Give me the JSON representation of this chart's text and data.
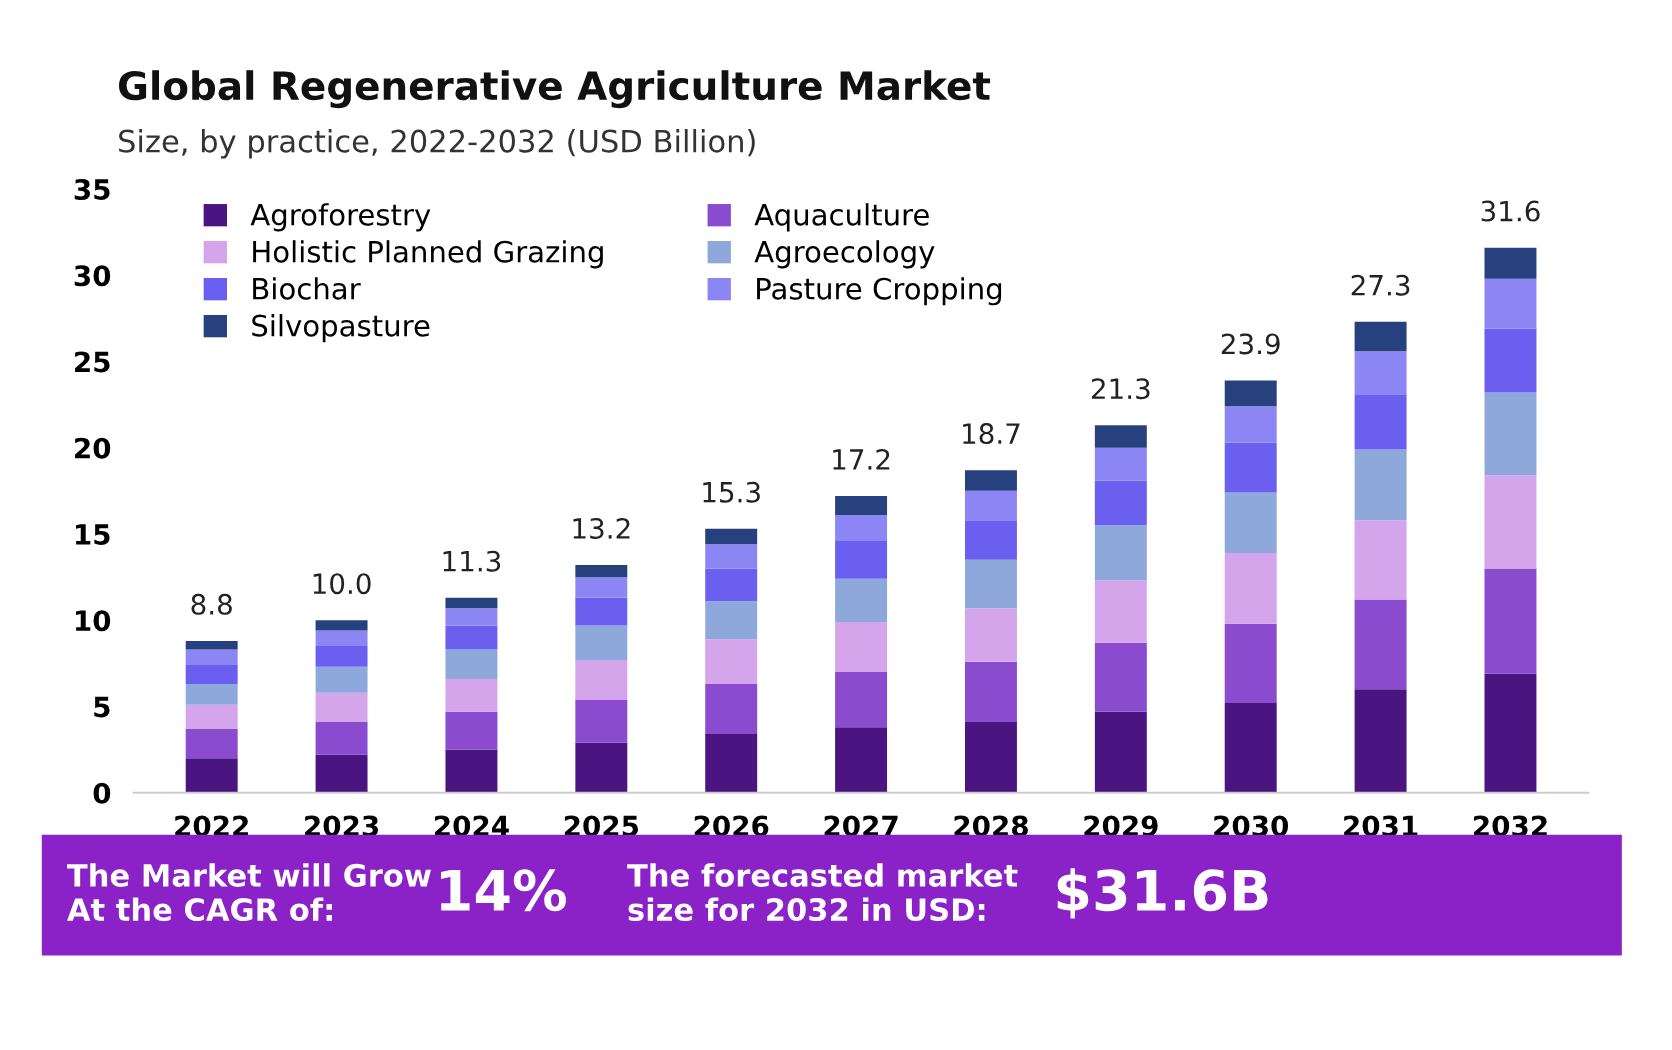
{
  "chart_data": {
    "type": "bar",
    "stacked": true,
    "title": "Global Regenerative Agriculture Market",
    "subtitle": "Size, by practice, 2022-2032 (USD Billion)",
    "categories": [
      "2022",
      "2023",
      "2024",
      "2025",
      "2026",
      "2027",
      "2028",
      "2029",
      "2030",
      "2031",
      "2032"
    ],
    "series": [
      {
        "name": "Agroforestry",
        "color": "#4a1580",
        "values": [
          2.0,
          2.2,
          2.5,
          2.9,
          3.4,
          3.8,
          4.1,
          4.7,
          5.2,
          6.0,
          6.9
        ]
      },
      {
        "name": "Aquaculture",
        "color": "#8a4bcf",
        "values": [
          1.7,
          1.9,
          2.2,
          2.5,
          2.9,
          3.2,
          3.5,
          4.0,
          4.6,
          5.2,
          6.1
        ]
      },
      {
        "name": "Holistic Planned Grazing",
        "color": "#d4a5ea",
        "values": [
          1.4,
          1.7,
          1.9,
          2.3,
          2.6,
          2.9,
          3.1,
          3.6,
          4.1,
          4.6,
          5.4
        ]
      },
      {
        "name": "Agroecology",
        "color": "#8fa8dc",
        "values": [
          1.2,
          1.5,
          1.7,
          2.0,
          2.2,
          2.5,
          2.8,
          3.2,
          3.5,
          4.1,
          4.8
        ]
      },
      {
        "name": "Biochar",
        "color": "#6b5ff0",
        "values": [
          1.1,
          1.2,
          1.4,
          1.6,
          1.9,
          2.2,
          2.3,
          2.6,
          2.9,
          3.2,
          3.7
        ]
      },
      {
        "name": "Pasture Cropping",
        "color": "#8c86f5",
        "values": [
          0.9,
          0.9,
          1.0,
          1.2,
          1.4,
          1.5,
          1.7,
          1.9,
          2.1,
          2.5,
          2.9
        ]
      },
      {
        "name": "Silvopasture",
        "color": "#27407e",
        "values": [
          0.5,
          0.6,
          0.6,
          0.7,
          0.9,
          1.1,
          1.2,
          1.3,
          1.5,
          1.7,
          1.8
        ]
      }
    ],
    "totals": [
      "8.8",
      "10.0",
      "11.3",
      "13.2",
      "15.3",
      "17.2",
      "18.7",
      "21.3",
      "23.9",
      "27.3",
      "31.6"
    ],
    "ylim": [
      0,
      35
    ],
    "yticks": [
      0,
      5,
      10,
      15,
      20,
      25,
      30,
      35
    ],
    "grid": false,
    "legend": "top left",
    "annotations": [
      "The Market will Grow\nAt the CAGR of:",
      "14%",
      "The forecasted market\nsize for 2032 in USD:",
      "$31.6B"
    ]
  }
}
